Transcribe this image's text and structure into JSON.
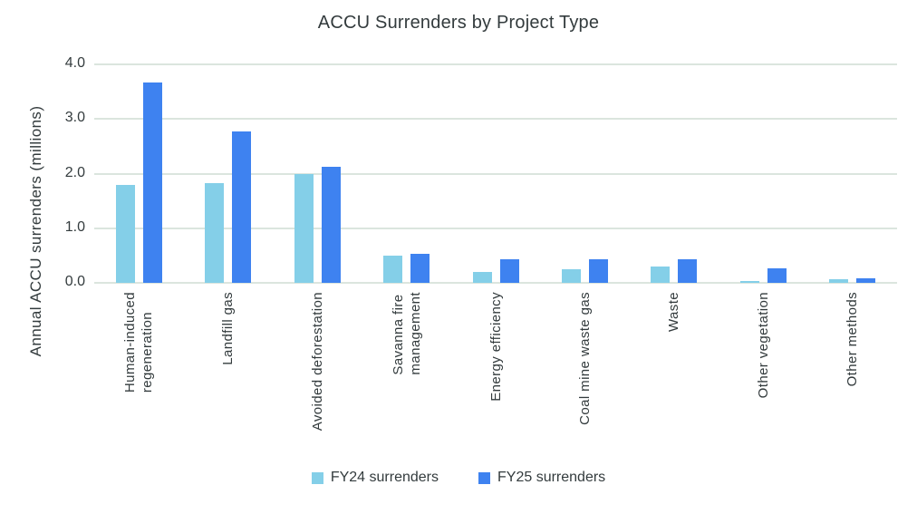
{
  "title": "ACCU Surrenders by Project Type",
  "chart_data": {
    "type": "bar",
    "title": "ACCU Surrenders by Project Type",
    "xlabel": "",
    "ylabel": "Annual ACCU surrenders (millions)",
    "ylim": [
      0,
      4.0
    ],
    "yticks": [
      "0.0",
      "1.0",
      "2.0",
      "3.0",
      "4.0"
    ],
    "ytick_values": [
      0,
      1.0,
      2.0,
      3.0,
      4.0
    ],
    "grid": true,
    "legend_position": "bottom",
    "categories": [
      "Human-induced regeneration",
      "Landfill gas",
      "Avoided deforestation",
      "Savanna fire management",
      "Energy efficiency",
      "Coal mine waste gas",
      "Waste",
      "Other vegetation",
      "Other methods"
    ],
    "category_label_lines": [
      [
        "Human-induced",
        "regeneration"
      ],
      [
        "Landfill gas"
      ],
      [
        "Avoided deforestation"
      ],
      [
        "Savanna fire",
        "management"
      ],
      [
        "Energy efficiency"
      ],
      [
        "Coal mine waste gas"
      ],
      [
        "Waste"
      ],
      [
        "Other vegetation"
      ],
      [
        "Other methods"
      ]
    ],
    "series": [
      {
        "name": "FY24 surrenders",
        "color": "#84CFE8",
        "values": [
          1.8,
          1.82,
          2.0,
          0.5,
          0.2,
          0.25,
          0.3,
          0.04,
          0.06
        ]
      },
      {
        "name": "FY25 surrenders",
        "color": "#3E82F0",
        "values": [
          3.67,
          2.78,
          2.13,
          0.53,
          0.43,
          0.43,
          0.43,
          0.27,
          0.08
        ]
      }
    ],
    "colors": {
      "grid": "#dbe5de",
      "text": "#333b3d",
      "background": "#ffffff"
    }
  }
}
